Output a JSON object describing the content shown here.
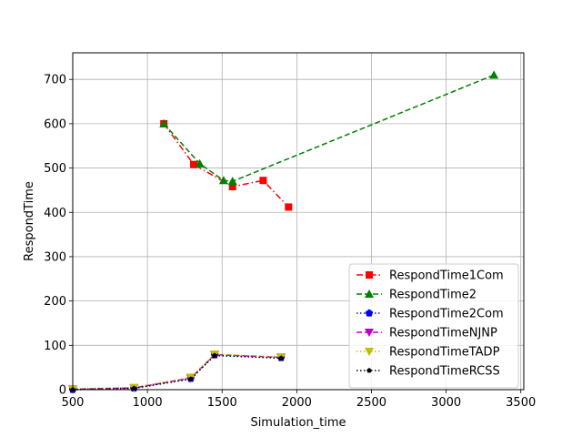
{
  "chart_data": {
    "type": "line",
    "xlabel": "Simulation_time",
    "ylabel": "RespondTime",
    "xlim": [
      500,
      3520
    ],
    "ylim": [
      0,
      760
    ],
    "xticks": [
      500,
      1000,
      1500,
      2000,
      2500,
      3000,
      3500
    ],
    "yticks": [
      0,
      100,
      200,
      300,
      400,
      500,
      600,
      700
    ],
    "grid": true,
    "legend_position": "lower-right",
    "series": [
      {
        "name": "RespondTime1Com",
        "color": "#ff0000",
        "linestyle": "dashdot",
        "marker": "square",
        "points": [
          [
            1110,
            600
          ],
          [
            1310,
            508
          ],
          [
            1570,
            458
          ],
          [
            1775,
            472
          ],
          [
            1945,
            412
          ]
        ]
      },
      {
        "name": "RespondTime2",
        "color": "#008000",
        "linestyle": "dashed",
        "marker": "triangle-up",
        "points": [
          [
            1110,
            600
          ],
          [
            1350,
            510
          ],
          [
            1510,
            472
          ],
          [
            1570,
            470
          ],
          [
            3320,
            710
          ]
        ]
      },
      {
        "name": "RespondTime2Com",
        "color": "#0000ff",
        "linestyle": "dotted",
        "marker": "pentagon",
        "points": [
          [
            500,
            0
          ],
          [
            910,
            3
          ],
          [
            1290,
            25
          ],
          [
            1450,
            78
          ],
          [
            1895,
            72
          ]
        ]
      },
      {
        "name": "RespondTimeNJNP",
        "color": "#bf00bf",
        "linestyle": "dashed",
        "marker": "triangle-down",
        "points": [
          [
            500,
            1
          ],
          [
            910,
            4
          ],
          [
            1290,
            26
          ],
          [
            1450,
            79
          ],
          [
            1895,
            73
          ]
        ]
      },
      {
        "name": "RespondTimeTADP",
        "color": "#bfbf00",
        "linestyle": "dotted",
        "marker": "triangle-down",
        "points": [
          [
            500,
            2
          ],
          [
            910,
            5
          ],
          [
            1290,
            28
          ],
          [
            1450,
            80
          ],
          [
            1895,
            74
          ]
        ]
      },
      {
        "name": "RespondTimeRCSS",
        "color": "#000000",
        "linestyle": "dotted",
        "marker": "pentagon-small",
        "points": [
          [
            500,
            0
          ],
          [
            910,
            3
          ],
          [
            1290,
            24
          ],
          [
            1450,
            77
          ],
          [
            1895,
            71
          ]
        ]
      }
    ]
  }
}
